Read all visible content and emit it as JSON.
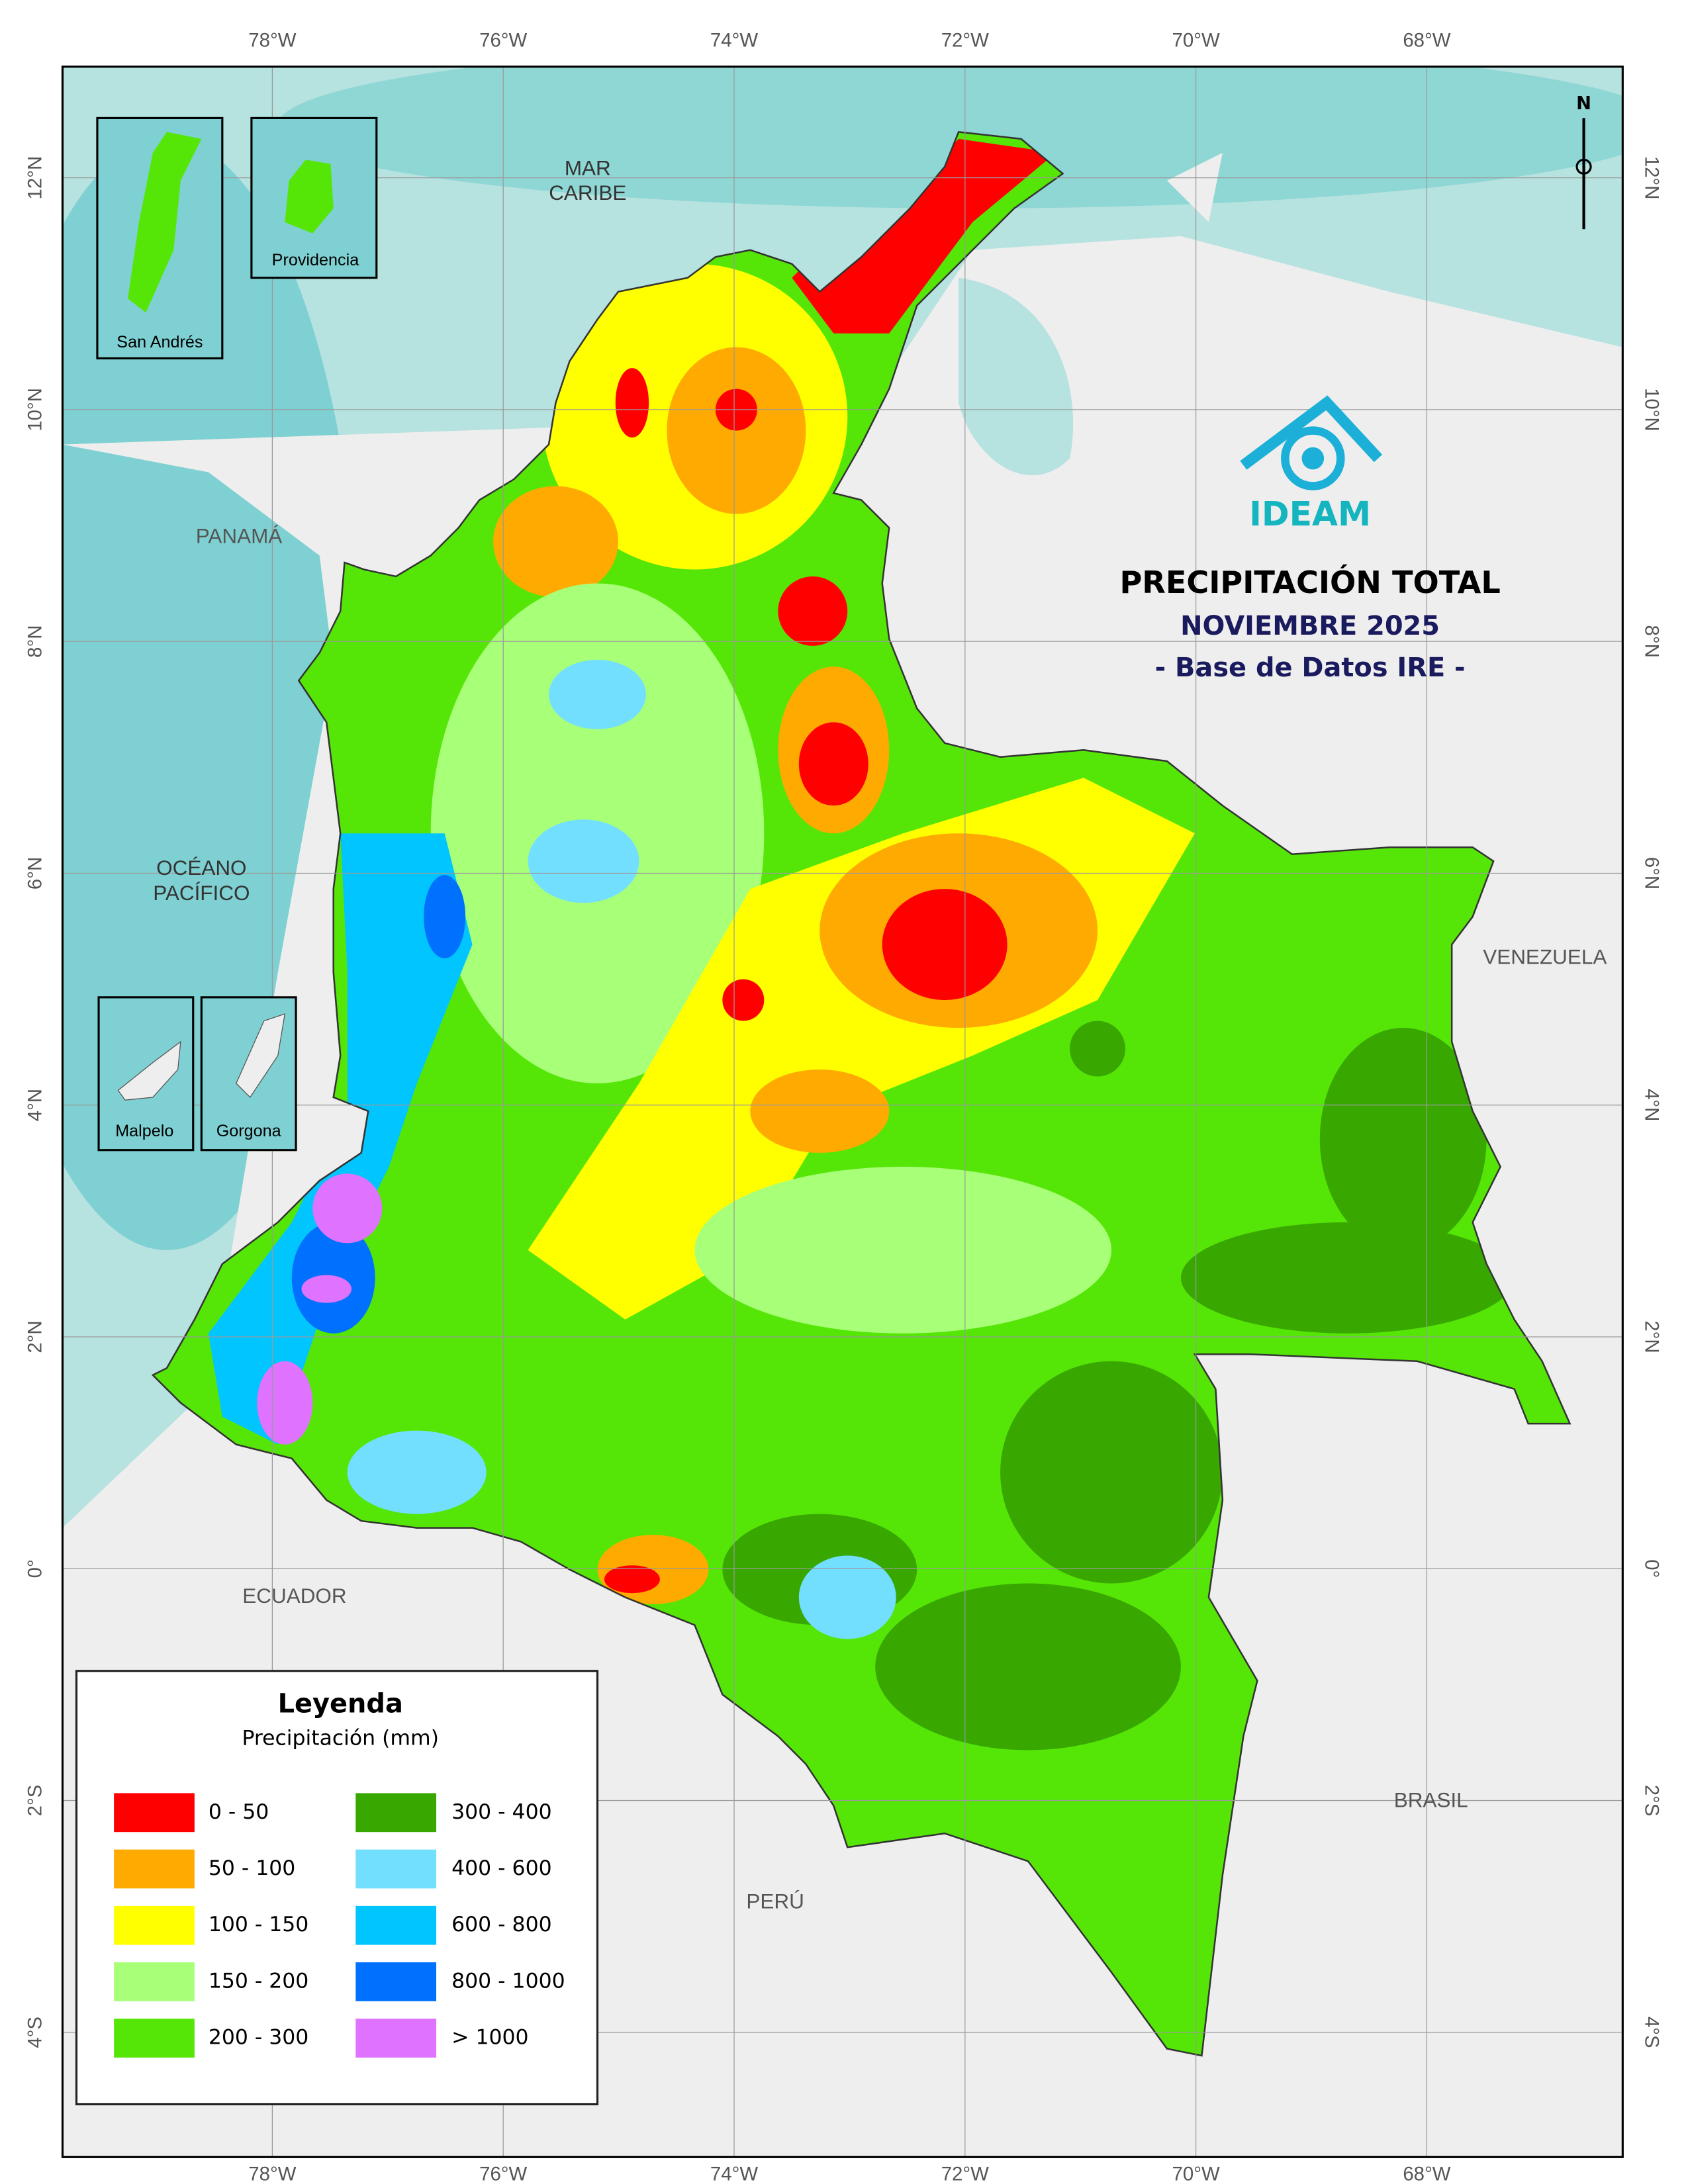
{
  "header": {
    "title": "PRECIPITACIÓN TOTAL",
    "subtitle": "NOVIEMBRE 2025",
    "source": "- Base de Datos IRE -",
    "logo": "IDEAM"
  },
  "legend": {
    "title": "Leyenda",
    "subtitle": "Precipitación (mm)",
    "items": [
      {
        "label": "0 - 50",
        "color": "#ff0000"
      },
      {
        "label": "50 - 100",
        "color": "#ffaa00"
      },
      {
        "label": "100 - 150",
        "color": "#ffff00"
      },
      {
        "label": "150 - 200",
        "color": "#a8ff78"
      },
      {
        "label": "200 - 300",
        "color": "#55e607"
      },
      {
        "label": "300 - 400",
        "color": "#38a800"
      },
      {
        "label": "400 - 600",
        "color": "#73dfff"
      },
      {
        "label": "600 - 800",
        "color": "#00c5ff"
      },
      {
        "label": "800 - 1000",
        "color": "#0070ff"
      },
      {
        "label": "> 1000",
        "color": "#df73ff"
      }
    ]
  },
  "seas": [
    {
      "lines": [
        "MAR",
        "CARIBE"
      ]
    },
    {
      "lines": [
        "OCÉANO",
        "PACÍFICO"
      ]
    }
  ],
  "countries": [
    "PANAMÁ",
    "VENEZUELA",
    "ECUADOR",
    "PERÚ",
    "BRASIL"
  ],
  "insets": [
    "San Andrés",
    "Providencia",
    "Malpelo",
    "Gorgona"
  ],
  "north": "N",
  "graticule": {
    "longitudes": [
      "78°W",
      "76°W",
      "74°W",
      "72°W",
      "70°W",
      "68°W"
    ],
    "latitudes": [
      "12°N",
      "10°N",
      "8°N",
      "6°N",
      "4°N",
      "2°N",
      "0°",
      "2°S",
      "4°S"
    ]
  }
}
